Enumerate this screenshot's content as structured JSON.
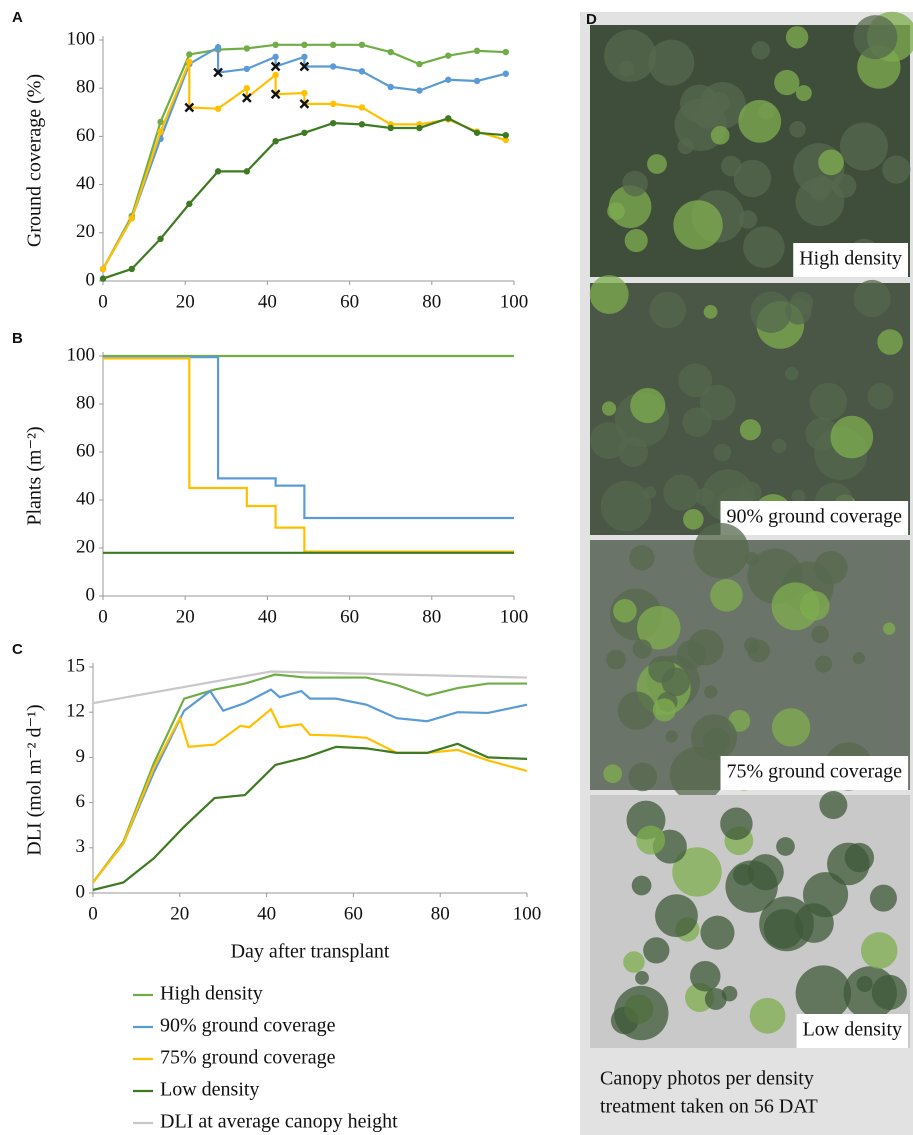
{
  "chart_data": [
    {
      "type": "line",
      "label": "A",
      "ylabel": "Ground coverage (%)",
      "markers": true,
      "xlim": [
        0,
        100
      ],
      "xticks": [
        0,
        20,
        40,
        60,
        80,
        100
      ],
      "ylim": [
        0,
        100
      ],
      "yticks": [
        0,
        20,
        40,
        60,
        80,
        100
      ],
      "series": [
        {
          "color": "#70ad47",
          "x": [
            0,
            7,
            14,
            21,
            28,
            35,
            42,
            49,
            56,
            63,
            70,
            77,
            84,
            91,
            98
          ],
          "values": [
            5,
            27,
            66,
            94,
            96,
            96.5,
            98,
            98,
            98,
            98,
            95,
            90,
            93.5,
            95.5,
            95
          ]
        },
        {
          "color": "#5b9bd5",
          "x": [
            0,
            7,
            14,
            21,
            28,
            28,
            35,
            42,
            42,
            49,
            49,
            56,
            63,
            70,
            77,
            84,
            91,
            98
          ],
          "values": [
            5,
            26,
            59,
            90,
            97,
            86.5,
            88,
            93,
            89,
            93,
            89,
            89,
            87,
            80.5,
            79,
            83.5,
            83,
            86
          ]
        },
        {
          "color": "#ffc000",
          "x": [
            0,
            7,
            14,
            21,
            21,
            28,
            35,
            35,
            42,
            42,
            49,
            49,
            56,
            63,
            70,
            77,
            84,
            91,
            98
          ],
          "values": [
            5,
            26,
            62,
            91,
            72,
            71.5,
            80,
            76,
            85.5,
            77.5,
            78,
            73.5,
            73.5,
            72,
            65,
            65,
            67,
            62,
            58.5
          ]
        },
        {
          "color": "#3d7a22",
          "x": [
            0,
            7,
            14,
            21,
            28,
            35,
            42,
            49,
            56,
            63,
            70,
            77,
            84,
            91,
            98
          ],
          "values": [
            1,
            5,
            17.5,
            32,
            45.5,
            45.5,
            58,
            61.5,
            65.5,
            65,
            63.5,
            63.5,
            67.5,
            61.5,
            60.5
          ]
        }
      ]
    },
    {
      "type": "line",
      "label": "B",
      "ylabel": "Plants (m⁻²)",
      "markers": false,
      "xlim": [
        0,
        100
      ],
      "xticks": [
        0,
        20,
        40,
        60,
        80,
        100
      ],
      "ylim": [
        0,
        100
      ],
      "yticks": [
        0,
        20,
        40,
        60,
        80,
        100
      ],
      "series": [
        {
          "color": "#70ad47",
          "x": [
            0,
            100
          ],
          "values": [
            100,
            100
          ]
        },
        {
          "color": "#5b9bd5",
          "x": [
            0,
            28,
            28,
            42,
            42,
            49,
            49,
            100
          ],
          "values": [
            99.5,
            99.5,
            49,
            49,
            46,
            46,
            32.5,
            32.5
          ]
        },
        {
          "color": "#ffc000",
          "x": [
            0,
            21,
            21,
            35,
            35,
            42,
            42,
            49,
            49,
            100
          ],
          "values": [
            99,
            99,
            45,
            45,
            37.5,
            37.5,
            28.5,
            28.5,
            18.5,
            18.5
          ]
        },
        {
          "color": "#3d7a22",
          "x": [
            0,
            100
          ],
          "values": [
            18,
            18
          ]
        }
      ]
    },
    {
      "type": "line",
      "label": "C",
      "ylabel": "DLI (mol m⁻² d⁻¹)",
      "xlabel": "Day after transplant",
      "markers": false,
      "xlim": [
        0,
        100
      ],
      "xticks": [
        0,
        20,
        40,
        60,
        80,
        100
      ],
      "ylim": [
        0,
        15
      ],
      "yticks": [
        0,
        3,
        6,
        9,
        12,
        15
      ],
      "series": [
        {
          "name": "High density",
          "color": "#70ad47",
          "x": [
            0,
            7,
            14,
            21,
            28,
            35,
            42,
            49,
            56,
            63,
            70,
            77,
            84,
            91,
            100
          ],
          "values": [
            0.7,
            3.4,
            8.6,
            12.9,
            13.5,
            13.9,
            14.5,
            14.3,
            14.3,
            14.3,
            13.8,
            13.1,
            13.6,
            13.9,
            13.9
          ]
        },
        {
          "name": "90% ground coverage",
          "color": "#5b9bd5",
          "x": [
            0,
            7,
            14,
            21,
            27,
            30,
            35,
            41,
            43,
            48,
            50,
            56,
            63,
            70,
            77,
            84,
            91,
            100
          ],
          "values": [
            0.7,
            3.3,
            8,
            12.1,
            13.4,
            12.1,
            12.6,
            13.5,
            13,
            13.4,
            12.9,
            12.9,
            12.5,
            11.6,
            11.4,
            12,
            11.95,
            12.5
          ]
        },
        {
          "name": "75% ground coverage",
          "color": "#ffc000",
          "x": [
            0,
            7,
            14,
            20,
            22,
            28,
            34,
            36,
            41,
            43,
            48,
            50,
            56,
            63,
            70,
            77,
            84,
            91,
            100
          ],
          "values": [
            0.7,
            3.3,
            8.3,
            11.6,
            9.7,
            9.85,
            11.1,
            11,
            12.2,
            11,
            11.2,
            10.5,
            10.45,
            10.3,
            9.3,
            9.3,
            9.5,
            8.8,
            8.1
          ]
        },
        {
          "name": "Low density",
          "color": "#3d7a22",
          "x": [
            0,
            7,
            14,
            21,
            28,
            35,
            42,
            49,
            56,
            63,
            70,
            77,
            84,
            91,
            100
          ],
          "values": [
            0.2,
            0.7,
            2.3,
            4.4,
            6.3,
            6.5,
            8.5,
            9,
            9.7,
            9.6,
            9.3,
            9.3,
            9.9,
            9,
            8.9
          ]
        },
        {
          "name": "DLI at average canopy height",
          "color": "#c8c8c8",
          "x": [
            0,
            41,
            100
          ],
          "values": [
            12.6,
            14.7,
            14.3
          ]
        }
      ]
    }
  ],
  "panel_d": {
    "label": "D",
    "photos": [
      "High density",
      "90% ground coverage",
      "75% ground coverage",
      "Low density"
    ],
    "caption": [
      "Canopy photos per density",
      "treatment taken on 56 DAT"
    ]
  }
}
